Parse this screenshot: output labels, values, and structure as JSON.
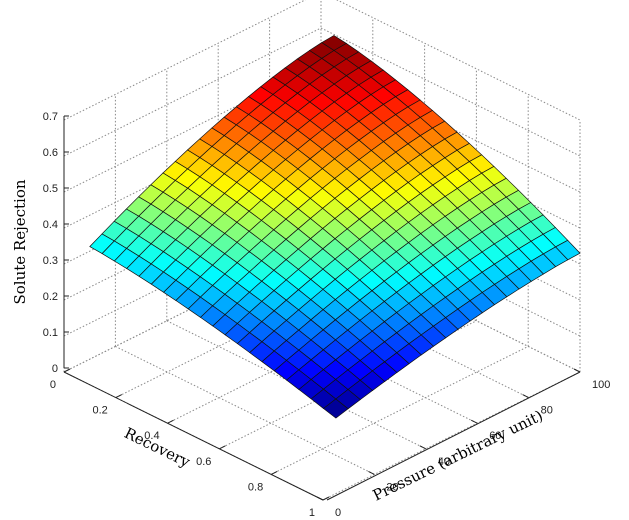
{
  "chart_data": {
    "type": "surface3d",
    "title": "",
    "xlabel": "Recovery",
    "ylabel": "Pressure (arbitrary unit)",
    "zlabel": "Solute Rejection",
    "x_ticks": [
      "0",
      "0.2",
      "0.4",
      "0.6",
      "0.8",
      "1"
    ],
    "y_ticks": [
      "0",
      "20",
      "40",
      "60",
      "80",
      "100"
    ],
    "z_ticks": [
      "0",
      "0.1",
      "0.2",
      "0.3",
      "0.4",
      "0.5",
      "0.6",
      "0.7"
    ],
    "xlim": [
      0,
      1
    ],
    "ylim": [
      0,
      100
    ],
    "zlim": [
      0,
      0.7
    ],
    "grid": true,
    "colormap": "jet",
    "mesh_size": [
      20,
      20
    ],
    "corner_values": {
      "recovery_0_pressure_0": 0.33,
      "recovery_0_pressure_100": 0.6,
      "recovery_1_pressure_0": 0.2,
      "recovery_1_pressure_100": 0.33
    },
    "description": "Solute rejection increases with pressure and decreases with recovery; maximum ~0.6 at low recovery / high pressure, minimum ~0.2 at high recovery / low pressure."
  },
  "axes": {
    "z_label": "Solute Rejection",
    "x_label": "Recovery",
    "y_label": "Pressure (arbitrary unit)"
  }
}
